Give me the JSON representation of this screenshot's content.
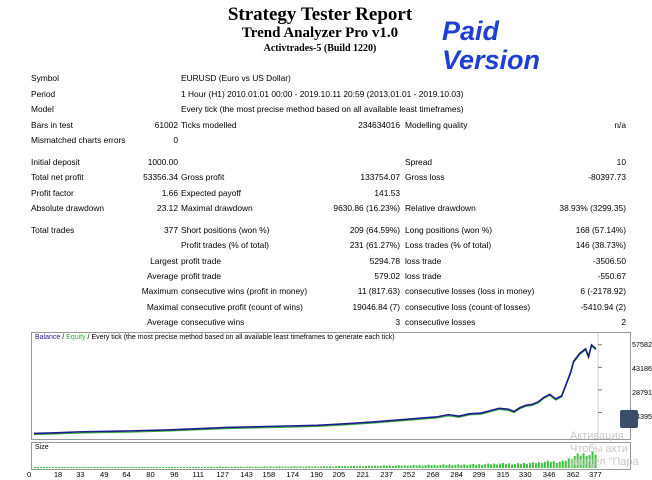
{
  "header": {
    "title": "Strategy Tester Report",
    "subtitle": "Trend Analyzer Pro v1.0",
    "broker": "Activtrades-5 (Build 1220)",
    "badge_line1": "Paid",
    "badge_line2": "Version"
  },
  "report": {
    "symbol_label": "Symbol",
    "symbol_value": "EURUSD (Euro vs US Dollar)",
    "period_label": "Period",
    "period_value": "1 Hour (H1) 2010.01.01 00:00 - 2019.10.11 20:59 (2013.01.01 - 2019.10.03)",
    "model_label": "Model",
    "model_value": "Every tick (the most precise method based on all available least timeframes)",
    "bars_label": "Bars in test",
    "bars_value": "61002",
    "ticks_label": "Ticks modelled",
    "ticks_value": "234634016",
    "quality_label": "Modelling quality",
    "quality_value": "n/a",
    "mismatch_label": "Mismatched charts errors",
    "mismatch_value": "0",
    "deposit_label": "Initial deposit",
    "deposit_value": "1000.00",
    "spread_label": "Spread",
    "spread_value": "10",
    "netprofit_label": "Total net profit",
    "netprofit_value": "53356.34",
    "grossprofit_label": "Gross profit",
    "grossprofit_value": "133754.07",
    "grossloss_label": "Gross loss",
    "grossloss_value": "-80397.73",
    "pf_label": "Profit factor",
    "pf_value": "1.66",
    "payoff_label": "Expected payoff",
    "payoff_value": "141.53",
    "absdd_label": "Absolute drawdown",
    "absdd_value": "23.12",
    "maxdd_label": "Maximal drawdown",
    "maxdd_value": "9630.86 (16.23%)",
    "reldd_label": "Relative drawdown",
    "reldd_value": "38.93% (3299.35)",
    "trades_label": "Total trades",
    "trades_value": "377",
    "short_label": "Short positions (won %)",
    "short_value": "209 (64.59%)",
    "long_label": "Long positions (won %)",
    "long_value": "168 (57.14%)",
    "profittrades_label": "Profit trades (% of total)",
    "profittrades_value": "231 (61.27%)",
    "losstrades_label": "Loss trades (% of total)",
    "losstrades_value": "146 (38.73%)",
    "largest_label": "Largest",
    "largest_profit_label": "profit trade",
    "largest_profit_value": "5294.78",
    "largest_loss_label": "loss trade",
    "largest_loss_value": "-3506.50",
    "average_label": "Average",
    "average_profit_label": "profit trade",
    "average_profit_value": "579.02",
    "average_loss_label": "loss trade",
    "average_loss_value": "-550.67",
    "maximum_label": "Maximum",
    "max_wins_label": "consecutive wins (profit in money)",
    "max_wins_value": "11 (817.63)",
    "max_losses_label": "consecutive losses (loss in money)",
    "max_losses_value": "6 (-2178.92)",
    "maximal_label": "Maximal",
    "maximal_profit_label": "consecutive profit (count of wins)",
    "maximal_profit_value": "19046.84 (7)",
    "maximal_loss_label": "consecutive loss (count of losses)",
    "maximal_loss_value": "-5410.94 (2)",
    "avg2_label": "Average",
    "avg_wins_label": "consecutive wins",
    "avg_wins_value": "3",
    "avg_losses_label": "consecutive losses",
    "avg_losses_value": "2"
  },
  "chart_data": {
    "type": "line",
    "legend_balance": "Balance",
    "legend_sep": " / ",
    "legend_equity": "Equity",
    "legend_rest": " / Every tick (the most precise method based on all available least timeframes to generate each tick)",
    "size_label": "Size",
    "y_ticks": [
      "57582",
      "43186",
      "28791",
      "14395"
    ],
    "ylim": [
      0,
      60000
    ],
    "x_ticks": [
      "0",
      "18",
      "33",
      "49",
      "64",
      "80",
      "96",
      "111",
      "127",
      "143",
      "158",
      "174",
      "190",
      "205",
      "221",
      "237",
      "252",
      "268",
      "284",
      "299",
      "315",
      "330",
      "346",
      "362",
      "377"
    ],
    "xlim": [
      0,
      377
    ],
    "x": [
      0,
      15,
      30,
      60,
      90,
      110,
      130,
      160,
      190,
      210,
      230,
      250,
      262,
      270,
      278,
      285,
      292,
      300,
      306,
      312,
      318,
      322,
      326,
      330,
      334,
      338,
      342,
      346,
      350,
      354,
      356,
      358,
      360,
      362,
      366,
      370,
      372,
      374,
      377
    ],
    "balance": [
      1000,
      1400,
      2000,
      2500,
      3200,
      4000,
      4800,
      5500,
      6200,
      7200,
      8500,
      10000,
      11000,
      11500,
      13000,
      12000,
      13500,
      14000,
      15500,
      17000,
      16500,
      15000,
      17500,
      19000,
      19500,
      21000,
      24000,
      26000,
      23000,
      25000,
      30000,
      35000,
      40000,
      47000,
      52000,
      55000,
      50000,
      57500,
      55000
    ],
    "colors": {
      "balance": "#1a1a8c",
      "equity": "#2fae2f",
      "size": "#3fbf3f"
    }
  },
  "watermark": {
    "line1": "Активация",
    "line2": "Чтобы акти",
    "line3": "раздел \"Пара"
  }
}
